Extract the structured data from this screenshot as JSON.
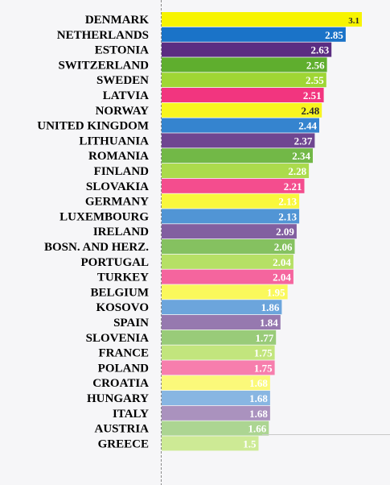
{
  "chart_data": {
    "type": "bar",
    "orientation": "horizontal",
    "title": "",
    "xlabel": "",
    "ylabel": "",
    "xlim": [
      0,
      3.1
    ],
    "grid": false,
    "legend": "none",
    "categories": [
      "DENMARK",
      "NETHERLANDS",
      "ESTONIA",
      "SWITZERLAND",
      "SWEDEN",
      "LATVIA",
      "NORWAY",
      "UNITED KINGDOM",
      "LITHUANIA",
      "ROMANIA",
      "FINLAND",
      "SLOVAKIA",
      "GERMANY",
      "LUXEMBOURG",
      "IRELAND",
      "BOSN. AND HERZ.",
      "PORTUGAL",
      "TURKEY",
      "BELGIUM",
      "KOSOVO",
      "SPAIN",
      "SLOVENIA",
      "FRANCE",
      "POLAND",
      "CROATIA",
      "HUNGARY",
      "ITALY",
      "AUSTRIA",
      "GREECE"
    ],
    "values": [
      3.1,
      2.85,
      2.63,
      2.56,
      2.55,
      2.51,
      2.48,
      2.44,
      2.37,
      2.34,
      2.28,
      2.21,
      2.13,
      2.13,
      2.09,
      2.06,
      2.04,
      2.04,
      1.95,
      1.86,
      1.84,
      1.77,
      1.75,
      1.75,
      1.68,
      1.68,
      1.68,
      1.66,
      1.5
    ],
    "value_labels": [
      "3.1",
      "2.85",
      "2.63",
      "2.56",
      "2.55",
      "2.51",
      "2.48",
      "2.44",
      "2.37",
      "2.34",
      "2.28",
      "2.21",
      "2.13",
      "2.13",
      "2.09",
      "2.06",
      "2.04",
      "2.04",
      "1.95",
      "1.86",
      "1.84",
      "1.77",
      "1.75",
      "1.75",
      "1.68",
      "1.68",
      "1.68",
      "1.66",
      "1.5"
    ],
    "palette": [
      "#f7f400",
      "#1a73c8",
      "#5b2d82",
      "#5fae2e",
      "#9fd634",
      "#f2357f"
    ],
    "colors": {
      "label_text": "#000000",
      "axis_line": "#8a8a8a"
    }
  }
}
